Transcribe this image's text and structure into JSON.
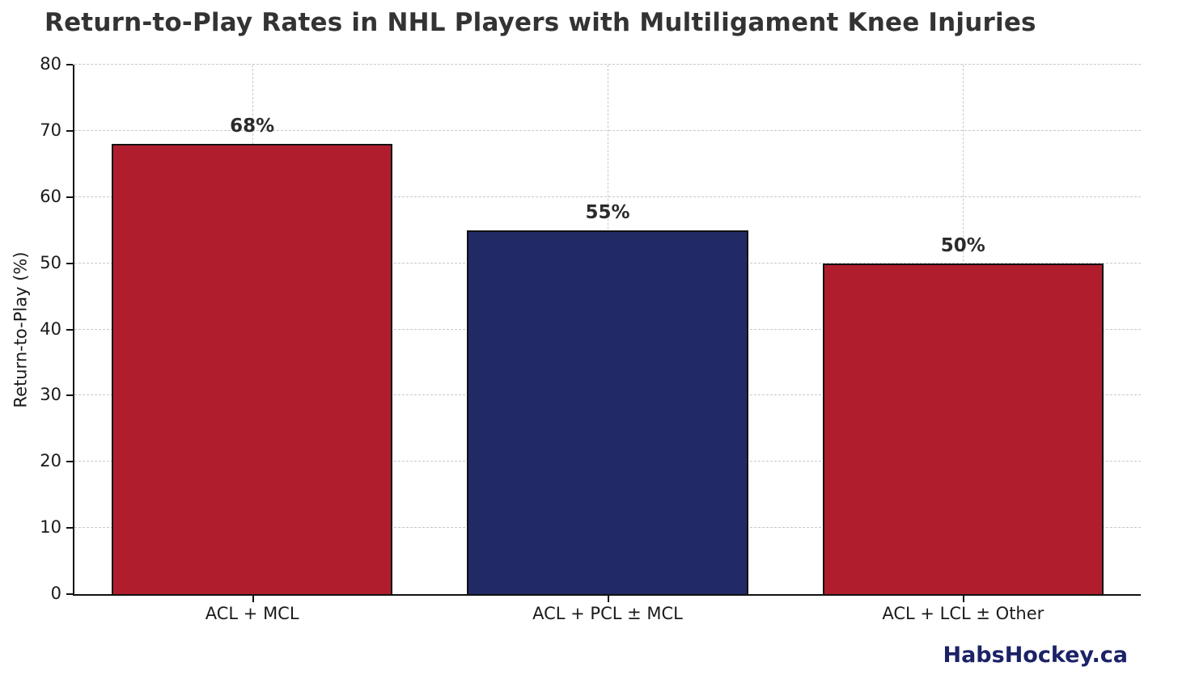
{
  "title": "Return-to-Play Rates in NHL Players with Multiligament Knee Injuries",
  "watermark": "HabsHockey.ca",
  "colors": {
    "title_text": "#333333",
    "axis_text": "#1a1a1a",
    "gridline": "#c9c9c9",
    "bar_red": "#b01e2d",
    "bar_navy": "#212a64",
    "watermark_navy": "#1b2266"
  },
  "chart_data": {
    "type": "bar",
    "title": "Return-to-Play Rates in NHL Players with Multiligament Knee Injuries",
    "categories": [
      "ACL + MCL",
      "ACL + PCL ± MCL",
      "ACL + LCL ± Other"
    ],
    "values": [
      68,
      55,
      50
    ],
    "bar_labels": [
      "68%",
      "55%",
      "50%"
    ],
    "bar_colors": [
      "#b01e2d",
      "#212a64",
      "#b01e2d"
    ],
    "xlabel": "",
    "ylabel": "Return-to-Play (%)",
    "ylim": [
      0,
      80
    ],
    "yticks": [
      0,
      10,
      20,
      30,
      40,
      50,
      60,
      70,
      80
    ],
    "grid": true,
    "legend": "none",
    "bar_width_fraction": 0.79
  }
}
